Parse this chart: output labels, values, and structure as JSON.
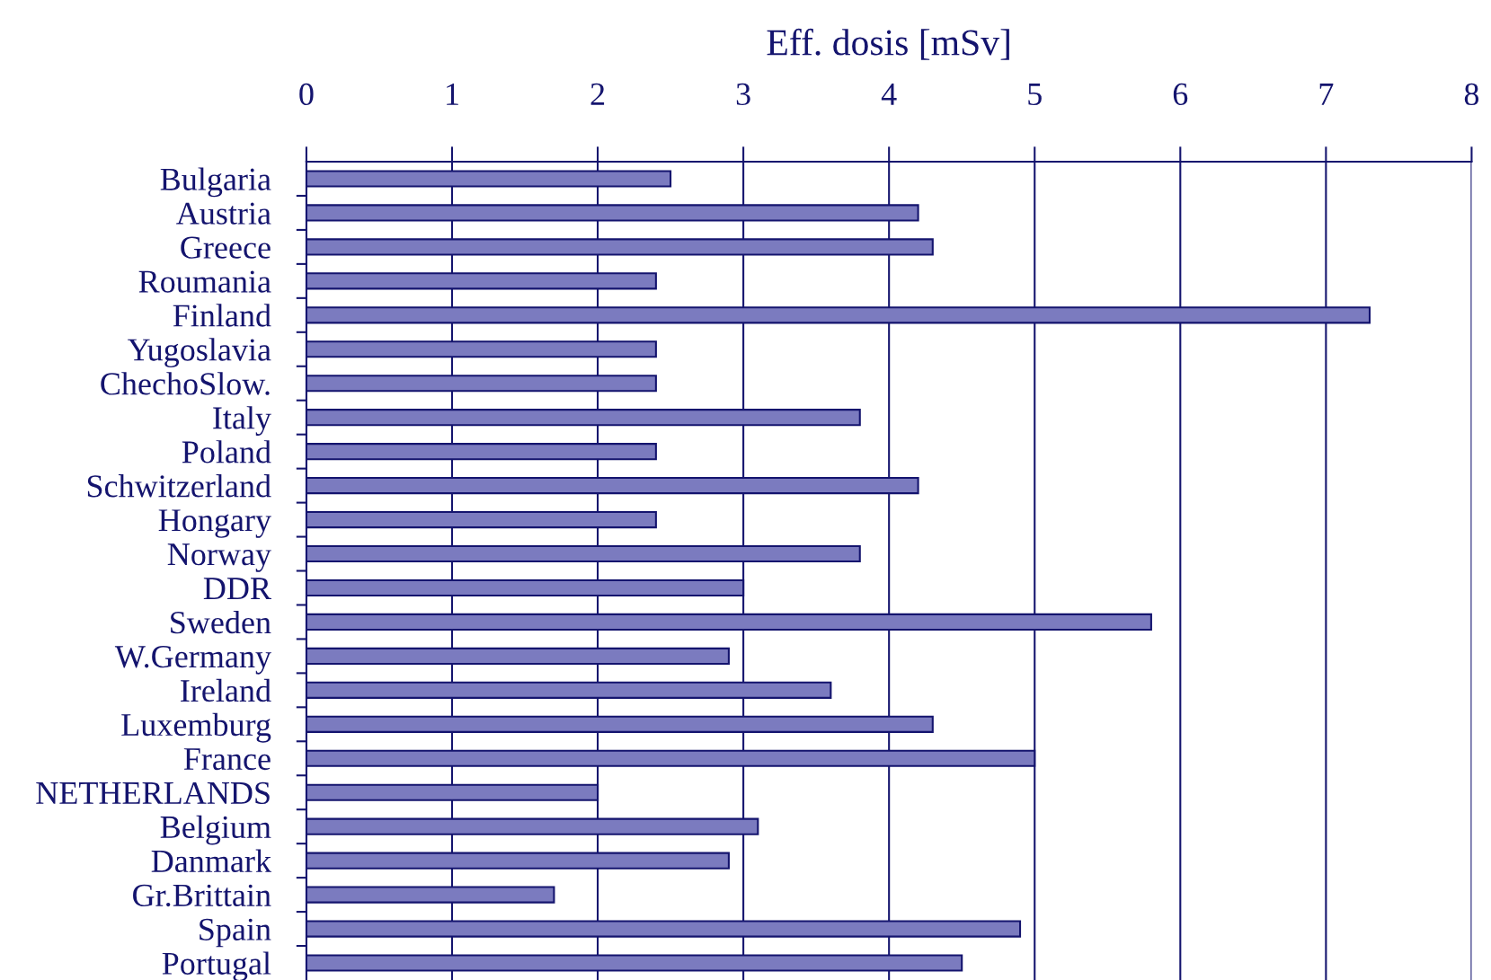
{
  "chart_data": {
    "type": "bar",
    "orientation": "horizontal",
    "xlabel": "Eff. dosis [mSv]",
    "categories": [
      "Bulgaria",
      "Austria",
      "Greece",
      "Roumania",
      "Finland",
      "Yugoslavia",
      "ChechoSlow.",
      "Italy",
      "Poland",
      "Schwitzerland",
      "Hongary",
      "Norway",
      "DDR",
      "Sweden",
      "W.Germany",
      "Ireland",
      "Luxemburg",
      "France",
      "NETHERLANDS",
      "Belgium",
      "Danmark",
      "Gr.Brittain",
      "Spain",
      "Portugal"
    ],
    "values": [
      2.5,
      4.2,
      4.3,
      2.4,
      7.3,
      2.4,
      2.4,
      3.8,
      2.4,
      4.2,
      2.4,
      3.8,
      3.0,
      5.8,
      2.9,
      3.6,
      4.3,
      5.0,
      2.0,
      3.1,
      2.9,
      1.7,
      4.9,
      4.5
    ],
    "color": "#7b7bbf",
    "xlim": [
      0,
      8
    ],
    "xticks": [
      0,
      1,
      2,
      3,
      4,
      5,
      6,
      7,
      8
    ],
    "grid": "x",
    "legend": false
  }
}
